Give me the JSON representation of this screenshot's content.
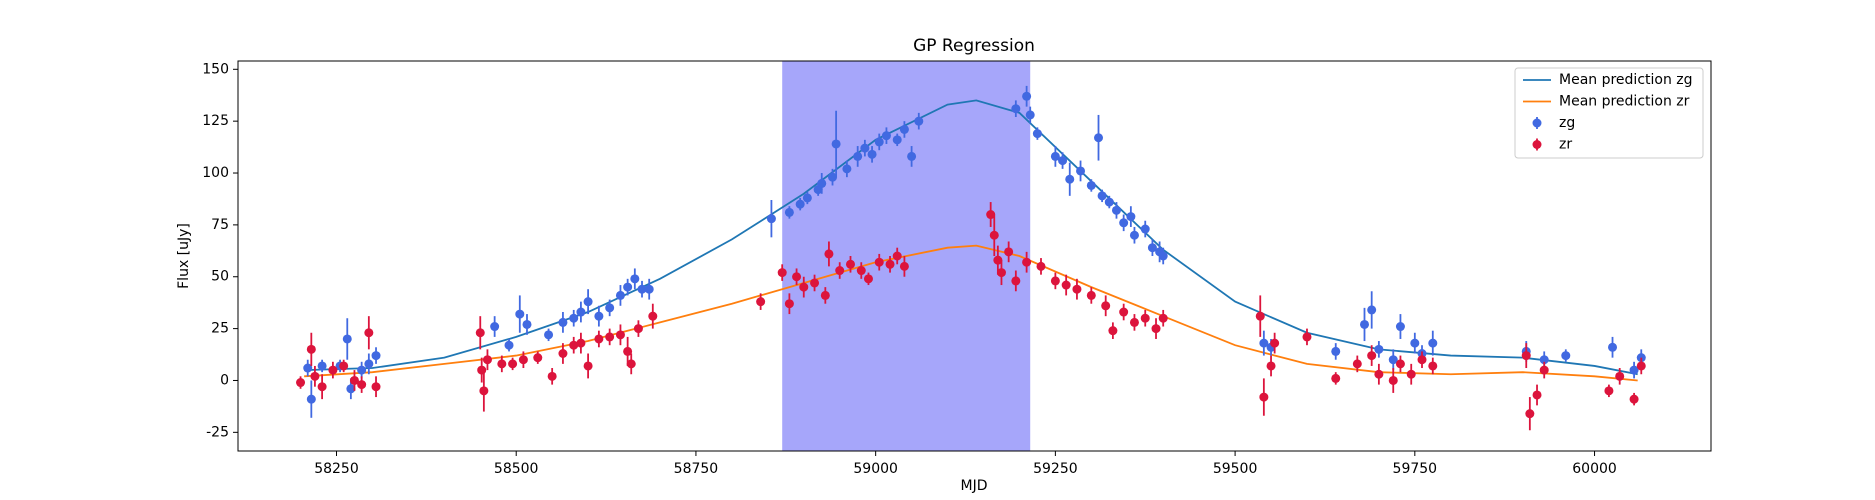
{
  "chart_data": {
    "type": "errorbar",
    "title": "GP Regression",
    "xlabel": "MJD",
    "ylabel": "Flux [uJy]",
    "xlim": [
      58113,
      60162
    ],
    "ylim": [
      -34,
      154
    ],
    "xticks": [
      58250,
      58500,
      58750,
      59000,
      59250,
      59500,
      59750,
      60000
    ],
    "yticks": [
      -25,
      0,
      25,
      50,
      75,
      100,
      125,
      150
    ],
    "span": {
      "x": [
        58870,
        59215
      ],
      "color": "#a6a6fa"
    },
    "legend": "upper right",
    "series": [
      {
        "name": "Mean prediction zg",
        "mode": "line",
        "color": "#1f77b4",
        "x": [
          58205,
          58300,
          58400,
          58500,
          58600,
          58700,
          58800,
          58900,
          59000,
          59100,
          59140,
          59200,
          59300,
          59400,
          59500,
          59600,
          59700,
          59800,
          59900,
          60000,
          60060
        ],
        "values": [
          5,
          6,
          11,
          21,
          33,
          49,
          68,
          90,
          116,
          133,
          135,
          129,
          96,
          63,
          38,
          23,
          15,
          12,
          11,
          7,
          3
        ]
      },
      {
        "name": "Mean prediction zr",
        "mode": "line",
        "color": "#ff7f0e",
        "x": [
          58205,
          58300,
          58400,
          58500,
          58600,
          58700,
          58800,
          58900,
          59000,
          59100,
          59140,
          59200,
          59300,
          59400,
          59500,
          59600,
          59700,
          59800,
          59900,
          60000,
          60060
        ],
        "values": [
          2,
          4,
          8,
          12,
          19,
          28,
          37,
          47,
          57,
          64,
          65,
          60,
          45,
          31,
          17,
          8,
          4,
          3,
          4,
          2,
          0
        ]
      },
      {
        "name": "zg",
        "mode": "points",
        "color": "#4169e1",
        "x": [
          58210,
          58215,
          58230,
          58255,
          58265,
          58270,
          58285,
          58295,
          58305,
          58470,
          58490,
          58505,
          58515,
          58545,
          58565,
          58580,
          58590,
          58600,
          58615,
          58630,
          58645,
          58655,
          58665,
          58675,
          58685,
          58855,
          58880,
          58895,
          58905,
          58920,
          58925,
          58940,
          58945,
          58960,
          58975,
          58985,
          58995,
          59005,
          59015,
          59030,
          59040,
          59050,
          59060,
          59195,
          59210,
          59215,
          59225,
          59250,
          59260,
          59270,
          59285,
          59300,
          59310,
          59315,
          59325,
          59335,
          59345,
          59355,
          59360,
          59375,
          59385,
          59395,
          59400,
          59540,
          59550,
          59640,
          59680,
          59690,
          59700,
          59720,
          59730,
          59750,
          59760,
          59775,
          59905,
          59930,
          59960,
          60025,
          60055,
          60065
        ],
        "values": [
          6,
          -9,
          7,
          7,
          20,
          -4,
          5,
          8,
          12,
          26,
          17,
          32,
          27,
          22,
          28,
          30,
          33,
          38,
          31,
          35,
          41,
          45,
          49,
          44,
          44,
          78,
          81,
          85,
          88,
          92,
          95,
          98,
          114,
          102,
          108,
          112,
          109,
          115,
          118,
          116,
          121,
          108,
          125,
          131,
          137,
          128,
          119,
          108,
          106,
          97,
          101,
          94,
          117,
          89,
          86,
          82,
          76,
          79,
          70,
          73,
          64,
          62,
          60,
          18,
          16,
          14,
          27,
          34,
          15,
          10,
          26,
          18,
          13,
          18,
          14,
          10,
          12,
          16,
          5,
          11
        ],
        "errors": [
          4,
          9,
          3,
          3,
          10,
          5,
          4,
          5,
          4,
          5,
          3,
          9,
          5,
          3,
          5,
          4,
          5,
          6,
          5,
          4,
          5,
          4,
          5,
          4,
          5,
          9,
          3,
          3,
          3,
          3,
          5,
          4,
          16,
          4,
          5,
          4,
          4,
          4,
          4,
          3,
          4,
          5,
          4,
          4,
          5,
          4,
          3,
          5,
          4,
          8,
          5,
          3,
          11,
          3,
          3,
          4,
          4,
          5,
          4,
          4,
          4,
          5,
          4,
          6,
          4,
          4,
          8,
          9,
          4,
          5,
          6,
          5,
          4,
          6,
          5,
          4,
          3,
          5,
          4,
          4
        ]
      },
      {
        "name": "zr",
        "mode": "points",
        "color": "#dc143c",
        "x": [
          58200,
          58215,
          58220,
          58230,
          58245,
          58260,
          58275,
          58285,
          58295,
          58305,
          58450,
          58452,
          58455,
          58460,
          58480,
          58495,
          58510,
          58530,
          58550,
          58565,
          58580,
          58590,
          58600,
          58615,
          58630,
          58645,
          58655,
          58660,
          58670,
          58690,
          58840,
          58870,
          58880,
          58890,
          58900,
          58915,
          58930,
          58935,
          58950,
          58965,
          58980,
          58990,
          59005,
          59020,
          59030,
          59040,
          59160,
          59165,
          59170,
          59175,
          59185,
          59195,
          59210,
          59230,
          59250,
          59265,
          59280,
          59300,
          59320,
          59330,
          59345,
          59360,
          59375,
          59390,
          59400,
          59535,
          59540,
          59550,
          59555,
          59600,
          59640,
          59670,
          59690,
          59700,
          59720,
          59730,
          59745,
          59760,
          59775,
          59905,
          59910,
          59920,
          59930,
          60020,
          60035,
          60055,
          60065
        ],
        "values": [
          -1,
          15,
          2,
          -3,
          5,
          7,
          0,
          -2,
          23,
          -3,
          23,
          5,
          -5,
          10,
          8,
          8,
          10,
          11,
          2,
          13,
          17,
          18,
          7,
          20,
          21,
          22,
          14,
          8,
          25,
          31,
          38,
          52,
          37,
          50,
          45,
          47,
          41,
          61,
          53,
          56,
          53,
          49,
          57,
          56,
          60,
          55,
          80,
          70,
          58,
          52,
          62,
          48,
          57,
          55,
          48,
          46,
          44,
          41,
          36,
          24,
          33,
          28,
          30,
          25,
          30,
          31,
          -8,
          7,
          18,
          21,
          1,
          8,
          12,
          3,
          0,
          8,
          3,
          10,
          7,
          12,
          -16,
          -7,
          5,
          -5,
          2,
          -9,
          7
        ],
        "errors": [
          3,
          8,
          5,
          6,
          4,
          3,
          5,
          4,
          8,
          5,
          8,
          6,
          10,
          5,
          4,
          3,
          4,
          3,
          4,
          5,
          4,
          5,
          6,
          4,
          4,
          5,
          7,
          5,
          4,
          6,
          4,
          4,
          5,
          4,
          5,
          4,
          4,
          6,
          4,
          4,
          4,
          3,
          4,
          4,
          4,
          5,
          6,
          10,
          7,
          6,
          5,
          5,
          5,
          4,
          4,
          5,
          5,
          4,
          5,
          4,
          4,
          4,
          4,
          5,
          4,
          10,
          9,
          5,
          5,
          4,
          3,
          4,
          5,
          5,
          6,
          4,
          5,
          4,
          4,
          6,
          8,
          5,
          4,
          3,
          4,
          3,
          4
        ]
      }
    ]
  }
}
